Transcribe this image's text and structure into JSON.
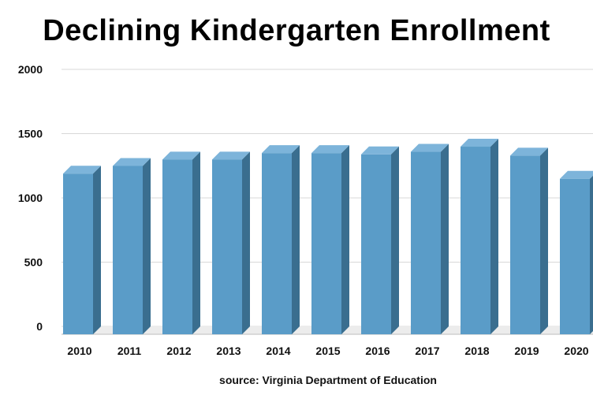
{
  "chart_data": {
    "type": "bar",
    "title": "Declining Kindergarten Enrollment",
    "source": "source: Virginia Department of Education",
    "categories": [
      "2010",
      "2011",
      "2012",
      "2013",
      "2014",
      "2015",
      "2016",
      "2017",
      "2018",
      "2019",
      "2020"
    ],
    "values": [
      1250,
      1310,
      1360,
      1360,
      1410,
      1410,
      1400,
      1420,
      1460,
      1390,
      1210
    ],
    "ylim": [
      0,
      2000
    ],
    "yticks": [
      0,
      500,
      1000,
      1500,
      2000
    ],
    "xlabel": "",
    "ylabel": "",
    "grid": true,
    "legend": "none",
    "colors": {
      "bar_front": "#5a9cc8",
      "bar_top": "#7db4da",
      "bar_side": "#3a6e8f",
      "grid": "#d8d8d8"
    }
  }
}
